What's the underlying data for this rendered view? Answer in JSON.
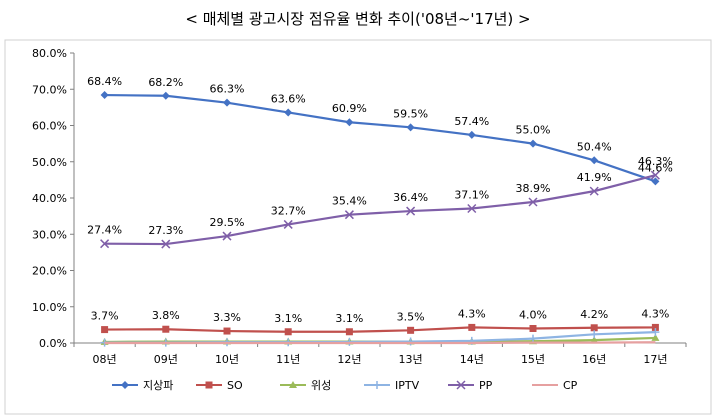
{
  "chart_data": {
    "type": "line",
    "title": "< 매체별 광고시장 점유율 변화 추이('08년~'17년) >",
    "categories": [
      "08년",
      "09년",
      "10년",
      "11년",
      "12년",
      "13년",
      "14년",
      "15년",
      "16년",
      "17년"
    ],
    "y_ticks": [
      "0.0%",
      "10.0%",
      "20.0%",
      "30.0%",
      "40.0%",
      "50.0%",
      "60.0%",
      "70.0%",
      "80.0%"
    ],
    "ylim": [
      0,
      80
    ],
    "grid": false,
    "legend_position": "bottom",
    "series": [
      {
        "name": "지상파",
        "color": "#4472C4",
        "marker": "diamond",
        "values": [
          68.4,
          68.2,
          66.3,
          63.6,
          60.9,
          59.5,
          57.4,
          55.0,
          50.4,
          44.6
        ],
        "labels": [
          "68.4%",
          "68.2%",
          "66.3%",
          "63.6%",
          "60.9%",
          "59.5%",
          "57.4%",
          "55.0%",
          "50.4%",
          "44.6%"
        ]
      },
      {
        "name": "SO",
        "color": "#C0504D",
        "marker": "square",
        "values": [
          3.7,
          3.8,
          3.3,
          3.1,
          3.1,
          3.5,
          4.3,
          4.0,
          4.2,
          4.3
        ],
        "labels": [
          "3.7%",
          "3.8%",
          "3.3%",
          "3.1%",
          "3.1%",
          "3.5%",
          "4.3%",
          "4.0%",
          "4.2%",
          "4.3%"
        ]
      },
      {
        "name": "위성",
        "color": "#9BBB59",
        "marker": "triangle",
        "values": [
          0.3,
          0.4,
          0.4,
          0.4,
          0.4,
          0.4,
          0.4,
          0.5,
          0.8,
          1.4
        ],
        "labels": []
      },
      {
        "name": "IPTV",
        "color": "#8EB4E3",
        "marker": "plus",
        "values": [
          0.1,
          0.1,
          0.2,
          0.2,
          0.3,
          0.4,
          0.6,
          1.2,
          2.4,
          3.0
        ],
        "labels": []
      },
      {
        "name": "PP",
        "color": "#7F5FA8",
        "marker": "x",
        "values": [
          27.4,
          27.3,
          29.5,
          32.7,
          35.4,
          36.4,
          37.1,
          38.9,
          41.9,
          46.3
        ],
        "labels": [
          "27.4%",
          "27.3%",
          "29.5%",
          "32.7%",
          "35.4%",
          "36.4%",
          "37.1%",
          "38.9%",
          "41.9%",
          "46.3%"
        ]
      },
      {
        "name": "CP",
        "color": "#E6A0A0",
        "marker": "none",
        "values": [
          0.0,
          0.0,
          0.0,
          0.0,
          0.0,
          0.0,
          0.0,
          0.1,
          0.1,
          0.2
        ],
        "labels": []
      }
    ]
  }
}
